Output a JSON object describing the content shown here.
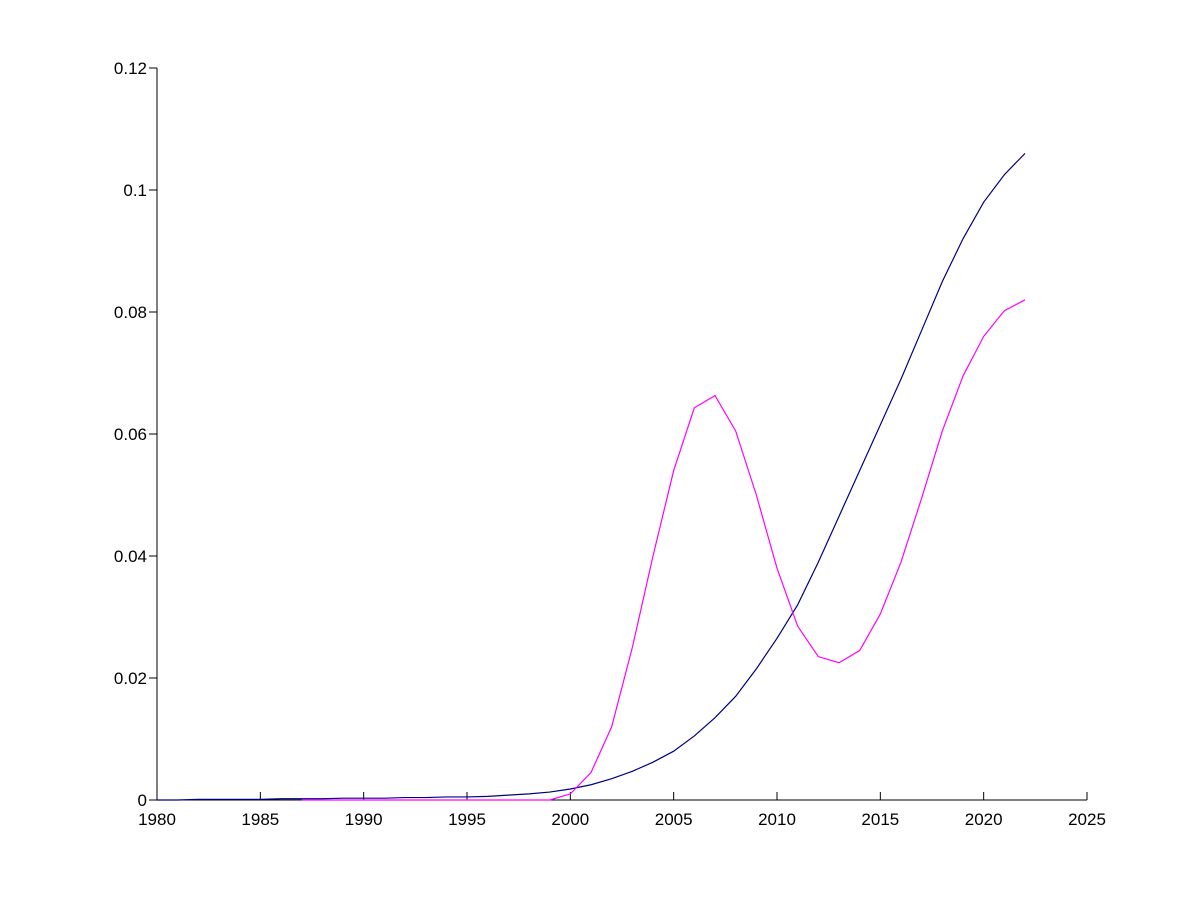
{
  "chart_data": {
    "type": "line",
    "x": [
      1980,
      1981,
      1982,
      1983,
      1984,
      1985,
      1986,
      1987,
      1988,
      1989,
      1990,
      1991,
      1992,
      1993,
      1994,
      1995,
      1996,
      1997,
      1998,
      1999,
      2000,
      2001,
      2002,
      2003,
      2004,
      2005,
      2006,
      2007,
      2008,
      2009,
      2010,
      2011,
      2012,
      2013,
      2014,
      2015,
      2016,
      2017,
      2018,
      2019,
      2020,
      2021,
      2022
    ],
    "series": [
      {
        "color": "#000080",
        "values": [
          0,
          0,
          0.0001,
          0.0001,
          0.0001,
          0.0001,
          0.0002,
          0.0002,
          0.0002,
          0.0003,
          0.0003,
          0.0003,
          0.0004,
          0.0004,
          0.0005,
          0.0005,
          0.0006,
          0.0008,
          0.001,
          0.0013,
          0.0018,
          0.0025,
          0.0035,
          0.0047,
          0.0062,
          0.008,
          0.0105,
          0.0135,
          0.017,
          0.0215,
          0.0265,
          0.032,
          0.039,
          0.0465,
          0.054,
          0.0615,
          0.069,
          0.077,
          0.085,
          0.092,
          0.098,
          0.1025,
          0.106
        ]
      },
      {
        "color": "#ff00ff",
        "values": [
          null,
          null,
          null,
          null,
          null,
          null,
          null,
          0,
          0,
          0,
          0,
          0,
          0,
          0,
          0,
          0,
          0,
          0,
          0,
          0,
          0.001,
          0.0045,
          0.012,
          0.025,
          0.04,
          0.054,
          0.0643,
          0.0663,
          0.0605,
          0.05,
          0.038,
          0.0285,
          0.0235,
          0.0225,
          0.0245,
          0.0305,
          0.039,
          0.0495,
          0.0605,
          0.0695,
          0.076,
          0.0802,
          0.082
        ]
      }
    ],
    "xlim": [
      1980,
      2025
    ],
    "xticks": [
      1980,
      1985,
      1990,
      1995,
      2000,
      2005,
      2010,
      2015,
      2020,
      2025
    ],
    "ylim": [
      0,
      0.12
    ],
    "yticks": [
      0,
      0.02,
      0.04,
      0.06,
      0.08,
      0.1,
      0.12
    ]
  }
}
